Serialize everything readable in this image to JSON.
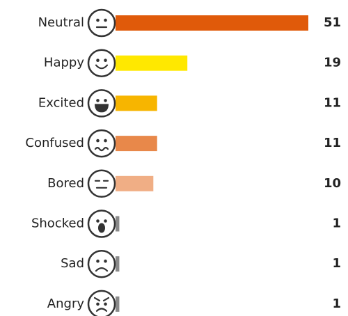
{
  "chart_data": {
    "type": "bar",
    "orientation": "horizontal",
    "categories": [
      "Neutral",
      "Happy",
      "Excited",
      "Confused",
      "Bored",
      "Shocked",
      "Sad",
      "Angry"
    ],
    "values": [
      51,
      19,
      11,
      11,
      10,
      1,
      1,
      1
    ],
    "colors": [
      "#e05a0a",
      "#ffe800",
      "#f7b500",
      "#e8884a",
      "#f0ae85",
      "#8a8a8a",
      "#8a8a8a",
      "#8a8a8a"
    ]
  }
}
